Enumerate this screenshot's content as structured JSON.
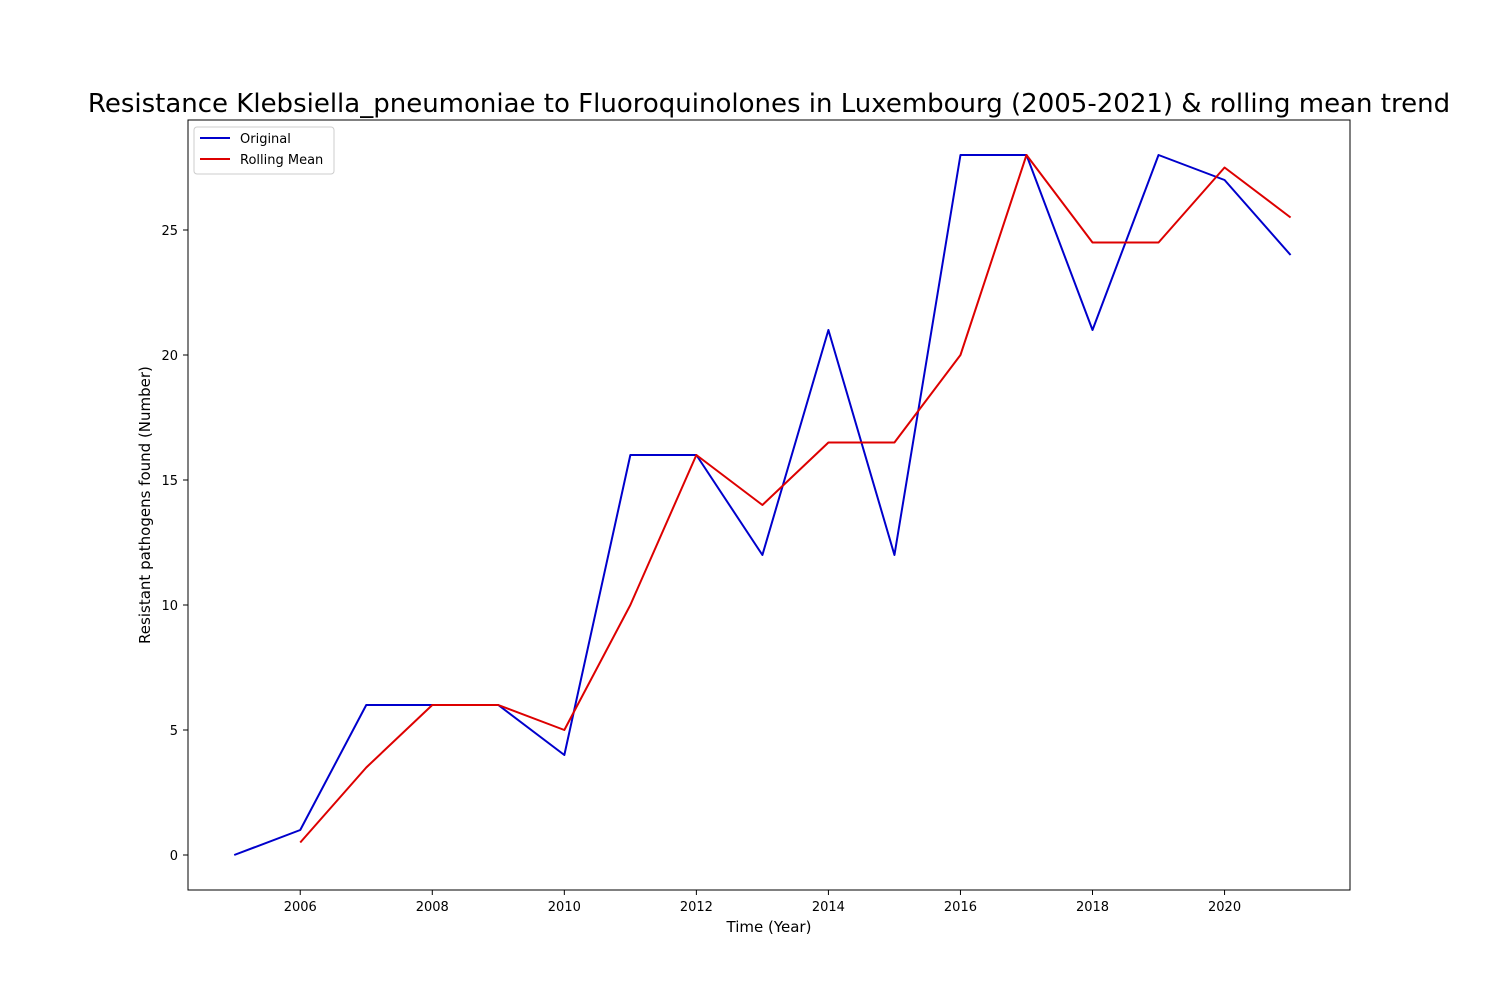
{
  "chart_data": {
    "type": "line",
    "title": "Resistance Klebsiella_pneumoniae to Fluoroquinolones in Luxembourg (2005-2021) & rolling mean trend",
    "xlabel": "Time (Year)",
    "ylabel": "Resistant pathogens found (Number)",
    "xlim": [
      2004.3,
      2021.9
    ],
    "ylim": [
      -1.4,
      29.4
    ],
    "x_ticks": [
      2006,
      2008,
      2010,
      2012,
      2014,
      2016,
      2018,
      2020
    ],
    "y_ticks": [
      0,
      5,
      10,
      15,
      20,
      25
    ],
    "grid": false,
    "legend_position": "top-left",
    "x": [
      2005,
      2006,
      2007,
      2008,
      2009,
      2010,
      2011,
      2012,
      2013,
      2014,
      2015,
      2016,
      2017,
      2018,
      2019,
      2020,
      2021
    ],
    "series": [
      {
        "name": "Original",
        "color": "#0000cc",
        "values": [
          0,
          1,
          6,
          6,
          6,
          4,
          16,
          16,
          12,
          21,
          12,
          28,
          28,
          21,
          28,
          27,
          24
        ]
      },
      {
        "name": "Rolling Mean",
        "color": "#dd0000",
        "values": [
          null,
          0.5,
          3.5,
          6,
          6,
          5,
          10,
          16,
          14,
          16.5,
          16.5,
          20,
          28,
          24.5,
          24.5,
          27.5,
          25.5
        ]
      }
    ]
  }
}
